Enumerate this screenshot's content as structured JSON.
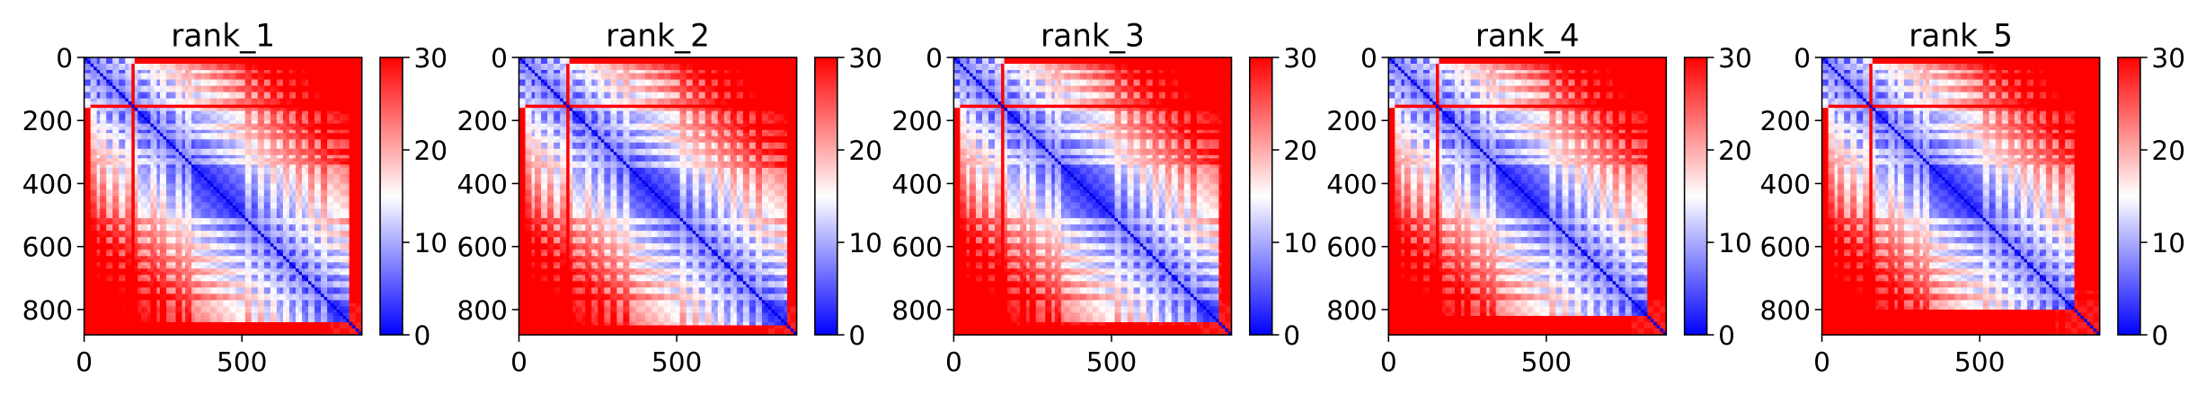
{
  "chart_data": [
    {
      "type": "heatmap",
      "title": "rank_1",
      "matrix_size": 880,
      "xlim": [
        0,
        880
      ],
      "ylim": [
        880,
        0
      ],
      "xticks": [
        0,
        500
      ],
      "yticks": [
        0,
        200,
        400,
        600,
        800
      ],
      "colorbar": {
        "min": 0,
        "max": 30,
        "ticks": [
          0,
          10,
          20,
          30
        ],
        "colormap": "bwr"
      },
      "bands": [
        30,
        60,
        100,
        140,
        160,
        220,
        250,
        300,
        330,
        520,
        560,
        600,
        640,
        680,
        720,
        760
      ],
      "bright_stripes": [
        90,
        140,
        690,
        860
      ],
      "dark_stripes": [
        90,
        140,
        690
      ],
      "edge_start": 840,
      "tail_start": 840,
      "corner_block": [
        [
          20,
          145
        ],
        [
          20,
          145
        ]
      ]
    },
    {
      "type": "heatmap",
      "title": "rank_2",
      "matrix_size": 880,
      "xlim": [
        0,
        880
      ],
      "ylim": [
        880,
        0
      ],
      "xticks": [
        0,
        500
      ],
      "yticks": [
        0,
        200,
        400,
        600,
        800
      ],
      "colorbar": {
        "min": 0,
        "max": 30,
        "ticks": [
          0,
          10,
          20,
          30
        ],
        "colormap": "bwr"
      },
      "bands": [
        30,
        60,
        100,
        140,
        160,
        220,
        260,
        300,
        340,
        520,
        560,
        600,
        640,
        680,
        720,
        760
      ],
      "bright_stripes": [
        90,
        140,
        690,
        860
      ],
      "dark_stripes": [
        90,
        140,
        690
      ],
      "edge_start": 850,
      "tail_start": 845,
      "corner_block": [
        [
          20,
          150
        ],
        [
          20,
          150
        ]
      ]
    },
    {
      "type": "heatmap",
      "title": "rank_3",
      "matrix_size": 880,
      "xlim": [
        0,
        880
      ],
      "ylim": [
        880,
        0
      ],
      "xticks": [
        0,
        500
      ],
      "yticks": [
        0,
        200,
        400,
        600,
        800
      ],
      "colorbar": {
        "min": 0,
        "max": 30,
        "ticks": [
          0,
          10,
          20,
          30
        ],
        "colormap": "bwr"
      },
      "bands": [
        30,
        60,
        100,
        140,
        160,
        220,
        250,
        300,
        330,
        520,
        560,
        600,
        640,
        680,
        720,
        760
      ],
      "bright_stripes": [
        90,
        140,
        690,
        860
      ],
      "dark_stripes": [
        90,
        140,
        690
      ],
      "edge_start": 845,
      "tail_start": 840,
      "corner_block": [
        [
          20,
          150
        ],
        [
          20,
          150
        ]
      ]
    },
    {
      "type": "heatmap",
      "title": "rank_4",
      "matrix_size": 880,
      "xlim": [
        0,
        880
      ],
      "ylim": [
        880,
        0
      ],
      "xticks": [
        0,
        500
      ],
      "yticks": [
        0,
        200,
        400,
        600,
        800
      ],
      "colorbar": {
        "min": 0,
        "max": 30,
        "ticks": [
          0,
          10,
          20,
          30
        ],
        "colormap": "bwr"
      },
      "bands": [
        30,
        60,
        100,
        140,
        160,
        220,
        250,
        300,
        330,
        520,
        560,
        600,
        640,
        680,
        720,
        760
      ],
      "bright_stripes": [
        90,
        140,
        690,
        860
      ],
      "dark_stripes": [
        90,
        140,
        690
      ],
      "edge_start": 820,
      "tail_start": 815,
      "corner_block": [
        [
          20,
          150
        ],
        [
          20,
          150
        ]
      ]
    },
    {
      "type": "heatmap",
      "title": "rank_5",
      "matrix_size": 880,
      "xlim": [
        0,
        880
      ],
      "ylim": [
        880,
        0
      ],
      "xticks": [
        0,
        500
      ],
      "yticks": [
        0,
        200,
        400,
        600,
        800
      ],
      "colorbar": {
        "min": 0,
        "max": 30,
        "ticks": [
          0,
          10,
          20,
          30
        ],
        "colormap": "bwr"
      },
      "bands": [
        30,
        60,
        100,
        140,
        160,
        220,
        250,
        300,
        330,
        520,
        560,
        600,
        640,
        680,
        720,
        760
      ],
      "bright_stripes": [
        90,
        140,
        690,
        860
      ],
      "dark_stripes": [
        90,
        140,
        690
      ],
      "edge_start": 800,
      "tail_start": 795,
      "corner_block": [
        [
          20,
          150
        ],
        [
          20,
          150
        ]
      ]
    }
  ]
}
